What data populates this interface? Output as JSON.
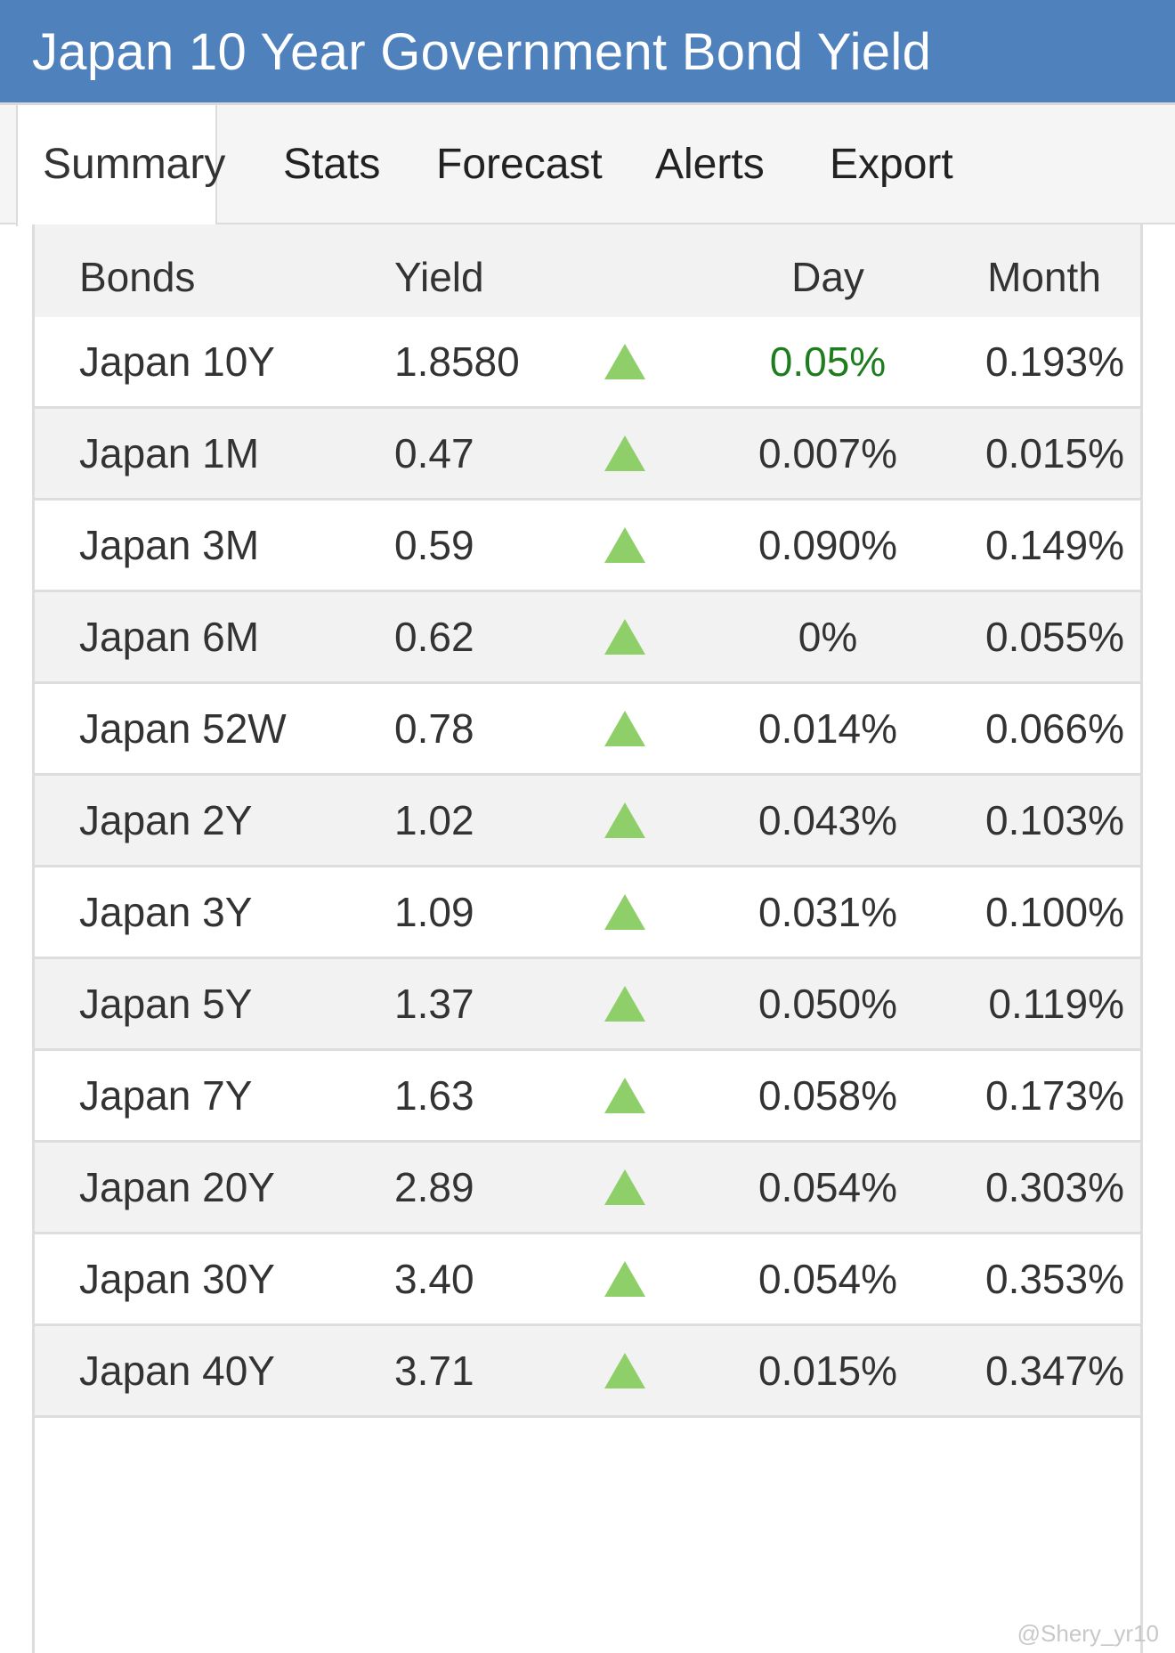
{
  "header": {
    "title": "Japan 10 Year Government Bond Yield"
  },
  "tabs": [
    {
      "label": "Summary",
      "active": true
    },
    {
      "label": "Stats",
      "active": false
    },
    {
      "label": "Forecast",
      "active": false
    },
    {
      "label": "Alerts",
      "active": false
    },
    {
      "label": "Export",
      "active": false
    }
  ],
  "table": {
    "columns": {
      "bonds": "Bonds",
      "yield": "Yield",
      "day": "Day",
      "month": "Month"
    },
    "rows": [
      {
        "name": "Japan 10Y",
        "yield": "1.8580",
        "direction": "up",
        "day": "0.05%",
        "month": "0.193%"
      },
      {
        "name": "Japan 1M",
        "yield": "0.47",
        "direction": "up",
        "day": "0.007%",
        "month": "0.015%"
      },
      {
        "name": "Japan 3M",
        "yield": "0.59",
        "direction": "up",
        "day": "0.090%",
        "month": "0.149%"
      },
      {
        "name": "Japan 6M",
        "yield": "0.62",
        "direction": "up",
        "day": "0%",
        "month": "0.055%"
      },
      {
        "name": "Japan 52W",
        "yield": "0.78",
        "direction": "up",
        "day": "0.014%",
        "month": "0.066%"
      },
      {
        "name": "Japan 2Y",
        "yield": "1.02",
        "direction": "up",
        "day": "0.043%",
        "month": "0.103%"
      },
      {
        "name": "Japan 3Y",
        "yield": "1.09",
        "direction": "up",
        "day": "0.031%",
        "month": "0.100%"
      },
      {
        "name": "Japan 5Y",
        "yield": "1.37",
        "direction": "up",
        "day": "0.050%",
        "month": "0.119%"
      },
      {
        "name": "Japan 7Y",
        "yield": "1.63",
        "direction": "up",
        "day": "0.058%",
        "month": "0.173%"
      },
      {
        "name": "Japan 20Y",
        "yield": "2.89",
        "direction": "up",
        "day": "0.054%",
        "month": "0.303%"
      },
      {
        "name": "Japan 30Y",
        "yield": "3.40",
        "direction": "up",
        "day": "0.054%",
        "month": "0.353%"
      },
      {
        "name": "Japan 40Y",
        "yield": "3.71",
        "direction": "up",
        "day": "0.015%",
        "month": "0.347%"
      }
    ]
  },
  "icons": {
    "direction_up": "triangle-up-icon"
  },
  "colors": {
    "header_bg": "#4f81bd",
    "arrow_up": "#8fcf6a",
    "day_highlight": "#1e7d1e"
  },
  "watermark": "@Shery_yr10"
}
